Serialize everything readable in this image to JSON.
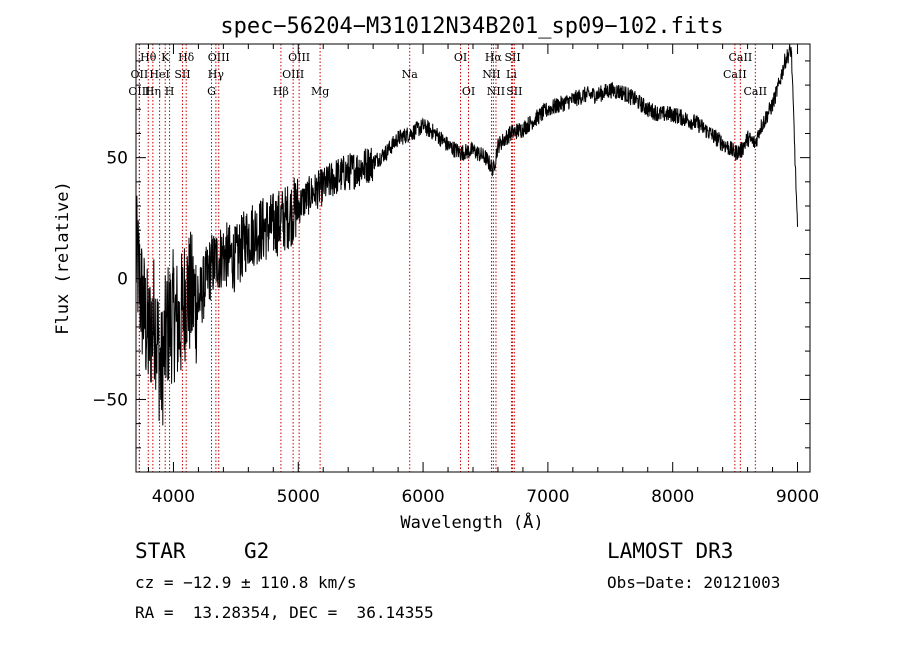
{
  "chart_data": {
    "type": "line",
    "title": "spec−56204−M31012N34B201_sp09−102.fits",
    "xlabel": "Wavelength (Å)",
    "ylabel": "Flux (relative)",
    "xlim": [
      3700,
      9100
    ],
    "ylim": [
      -80,
      97
    ],
    "x_ticks": [
      4000,
      5000,
      6000,
      7000,
      8000,
      9000
    ],
    "x_tick_labels": [
      "4000",
      "5000",
      "6000",
      "7000",
      "8000",
      "9000"
    ],
    "y_ticks": [
      -50,
      0,
      50
    ],
    "y_tick_labels": [
      "−50",
      "0",
      "50"
    ],
    "series": [
      {
        "name": "flux",
        "color": "#000000",
        "x": [
          3700,
          3750,
          3800,
          3850,
          3900,
          3950,
          4000,
          4050,
          4100,
          4150,
          4200,
          4300,
          4400,
          4500,
          4600,
          4700,
          4800,
          4900,
          5000,
          5100,
          5200,
          5300,
          5400,
          5500,
          5600,
          5700,
          5800,
          5900,
          6000,
          6100,
          6200,
          6300,
          6400,
          6500,
          6563,
          6600,
          6700,
          6800,
          6900,
          7000,
          7100,
          7200,
          7300,
          7400,
          7500,
          7600,
          7700,
          7800,
          7900,
          8000,
          8100,
          8200,
          8300,
          8400,
          8500,
          8550,
          8600,
          8662,
          8700,
          8800,
          8850,
          8900,
          8950,
          9000
        ],
        "y": [
          10,
          -10,
          -25,
          -15,
          -40,
          -20,
          -15,
          -20,
          -5,
          -8,
          -10,
          5,
          10,
          8,
          18,
          20,
          22,
          25,
          30,
          35,
          38,
          42,
          44,
          46,
          48,
          52,
          58,
          60,
          63,
          60,
          55,
          52,
          53,
          50,
          45,
          55,
          60,
          62,
          66,
          70,
          72,
          74,
          76,
          76,
          78,
          77,
          74,
          70,
          68,
          68,
          66,
          64,
          60,
          56,
          52,
          53,
          58,
          56,
          62,
          72,
          80,
          90,
          95,
          20
        ]
      }
    ],
    "spectral_lines": [
      {
        "label": "Hθ",
        "wavelength": 3798,
        "row": 1
      },
      {
        "label": "OII",
        "wavelength": 3727,
        "row": 2
      },
      {
        "label": "OIII",
        "wavelength": 3727,
        "row": 3
      },
      {
        "label": "Hη",
        "wavelength": 3835,
        "row": 3
      },
      {
        "label": "HeI",
        "wavelength": 3889,
        "row": 2
      },
      {
        "label": "K",
        "wavelength": 3934,
        "row": 1
      },
      {
        "label": "H",
        "wavelength": 3969,
        "row": 3
      },
      {
        "label": "SII",
        "wavelength": 4072,
        "row": 2
      },
      {
        "label": "Hδ",
        "wavelength": 4102,
        "row": 1
      },
      {
        "label": "OIII",
        "wavelength": 4363,
        "row": 1
      },
      {
        "label": "Hγ",
        "wavelength": 4340,
        "row": 2
      },
      {
        "label": "G",
        "wavelength": 4305,
        "row": 3
      },
      {
        "label": "Hβ",
        "wavelength": 4861,
        "row": 3
      },
      {
        "label": "OIII",
        "wavelength": 4959,
        "row": 2
      },
      {
        "label": "OIII",
        "wavelength": 5007,
        "row": 1
      },
      {
        "label": "Mg",
        "wavelength": 5175,
        "row": 3
      },
      {
        "label": "Na",
        "wavelength": 5893,
        "row": 2
      },
      {
        "label": "OI",
        "wavelength": 6300,
        "row": 1
      },
      {
        "label": "OI",
        "wavelength": 6364,
        "row": 3
      },
      {
        "label": "NII",
        "wavelength": 6548,
        "row": 2
      },
      {
        "label": "Hα",
        "wavelength": 6563,
        "row": 1
      },
      {
        "label": "NII",
        "wavelength": 6584,
        "row": 3
      },
      {
        "label": "Li",
        "wavelength": 6708,
        "row": 2
      },
      {
        "label": "SII",
        "wavelength": 6717,
        "row": 1
      },
      {
        "label": "SII",
        "wavelength": 6731,
        "row": 3
      },
      {
        "label": "CaII",
        "wavelength": 8498,
        "row": 2
      },
      {
        "label": "CaII",
        "wavelength": 8542,
        "row": 1
      },
      {
        "label": "CaII",
        "wavelength": 8662,
        "row": 3
      }
    ],
    "line_marker_color": "#cc0000"
  },
  "info": {
    "class_label": "STAR",
    "subclass": "G2",
    "survey": "LAMOST DR3",
    "redshift": "cz = −12.9 ± 110.8 km/s",
    "obs_date": "Obs−Date: 20121003",
    "coords": "RA =  13.28354, DEC =  36.14355"
  }
}
